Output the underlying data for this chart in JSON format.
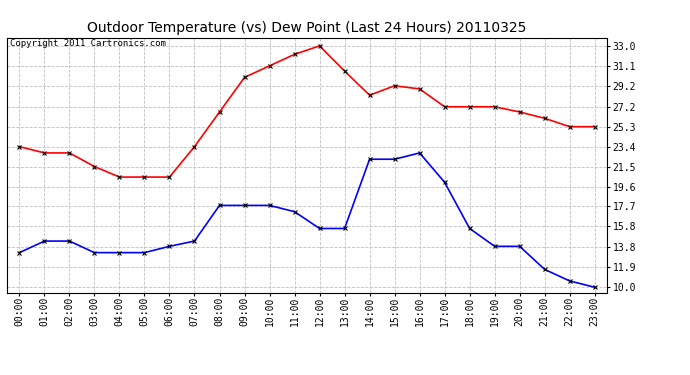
{
  "title": "Outdoor Temperature (vs) Dew Point (Last 24 Hours) 20110325",
  "copyright": "Copyright 2011 Cartronics.com",
  "hours": [
    "00:00",
    "01:00",
    "02:00",
    "03:00",
    "04:00",
    "05:00",
    "06:00",
    "07:00",
    "08:00",
    "09:00",
    "10:00",
    "11:00",
    "12:00",
    "13:00",
    "14:00",
    "15:00",
    "16:00",
    "17:00",
    "18:00",
    "19:00",
    "20:00",
    "21:00",
    "22:00",
    "23:00"
  ],
  "temp": [
    23.4,
    22.8,
    22.8,
    21.5,
    20.5,
    20.5,
    20.5,
    23.4,
    26.7,
    30.0,
    31.1,
    32.2,
    33.0,
    30.6,
    28.3,
    29.2,
    28.9,
    27.2,
    27.2,
    27.2,
    26.7,
    26.1,
    25.3,
    25.3
  ],
  "dewpoint": [
    13.3,
    14.4,
    14.4,
    13.3,
    13.3,
    13.3,
    13.9,
    14.4,
    17.8,
    17.8,
    17.8,
    17.2,
    15.6,
    15.6,
    22.2,
    22.2,
    22.8,
    20.0,
    15.6,
    13.9,
    13.9,
    11.7,
    10.6,
    10.0
  ],
  "temp_color": "#ff0000",
  "dew_color": "#0000ff",
  "bg_color": "#ffffff",
  "grid_color": "#c0c0c0",
  "yticks": [
    10.0,
    11.9,
    13.8,
    15.8,
    17.7,
    19.6,
    21.5,
    23.4,
    25.3,
    27.2,
    29.2,
    31.1,
    33.0
  ],
  "ylim": [
    9.5,
    33.8
  ],
  "title_fontsize": 10,
  "copyright_fontsize": 6.5,
  "tick_fontsize": 7,
  "marker_size": 3
}
